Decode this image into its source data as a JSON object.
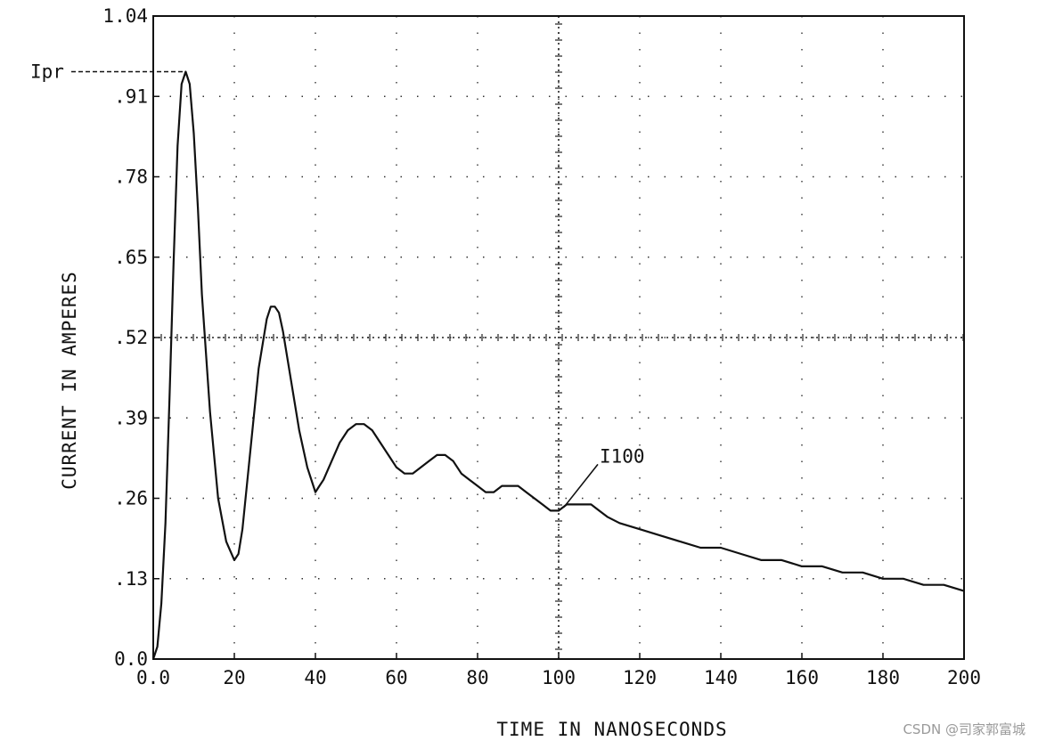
{
  "chart_data": {
    "type": "line",
    "xlabel": "TIME IN NANOSECONDS",
    "ylabel": "CURRENT IN AMPERES",
    "xlim": [
      0,
      200
    ],
    "ylim": [
      0,
      1.04
    ],
    "x_ticks": [
      "0.0",
      "20",
      "40",
      "60",
      "80",
      "100",
      "120",
      "140",
      "160",
      "180",
      "200"
    ],
    "x_tick_values": [
      0,
      20,
      40,
      60,
      80,
      100,
      120,
      140,
      160,
      180,
      200
    ],
    "y_ticks": [
      "0.0",
      ".13",
      ".26",
      ".39",
      ".52",
      ".65",
      ".78",
      ".91",
      "1.04"
    ],
    "y_tick_values": [
      0,
      0.13,
      0.26,
      0.39,
      0.52,
      0.65,
      0.78,
      0.91,
      1.04
    ],
    "grid": "dotted",
    "crosshair": {
      "x": 100,
      "y": 0.52
    },
    "series": [
      {
        "color": "#111111",
        "x": [
          0,
          1,
          2,
          3,
          4,
          5,
          6,
          7,
          8,
          9,
          10,
          11,
          12,
          14,
          16,
          18,
          20,
          21,
          22,
          24,
          26,
          28,
          29,
          30,
          31,
          32,
          34,
          36,
          38,
          40,
          41,
          42,
          44,
          46,
          48,
          50,
          52,
          54,
          56,
          58,
          60,
          62,
          64,
          66,
          68,
          70,
          72,
          74,
          76,
          78,
          80,
          82,
          84,
          86,
          88,
          90,
          92,
          94,
          96,
          98,
          100,
          102,
          104,
          106,
          108,
          110,
          112,
          115,
          120,
          125,
          130,
          135,
          140,
          145,
          150,
          155,
          160,
          165,
          170,
          175,
          180,
          185,
          190,
          195,
          200
        ],
        "y": [
          0.0,
          0.02,
          0.09,
          0.22,
          0.42,
          0.64,
          0.83,
          0.93,
          0.95,
          0.93,
          0.85,
          0.73,
          0.59,
          0.4,
          0.26,
          0.19,
          0.16,
          0.17,
          0.21,
          0.34,
          0.47,
          0.55,
          0.57,
          0.57,
          0.56,
          0.53,
          0.45,
          0.37,
          0.31,
          0.27,
          0.28,
          0.29,
          0.32,
          0.35,
          0.37,
          0.38,
          0.38,
          0.37,
          0.35,
          0.33,
          0.31,
          0.3,
          0.3,
          0.31,
          0.32,
          0.33,
          0.33,
          0.32,
          0.3,
          0.29,
          0.28,
          0.27,
          0.27,
          0.28,
          0.28,
          0.28,
          0.27,
          0.26,
          0.25,
          0.24,
          0.24,
          0.25,
          0.25,
          0.25,
          0.25,
          0.24,
          0.23,
          0.22,
          0.21,
          0.2,
          0.19,
          0.18,
          0.18,
          0.17,
          0.16,
          0.16,
          0.15,
          0.15,
          0.14,
          0.14,
          0.13,
          0.13,
          0.12,
          0.12,
          0.11
        ]
      }
    ],
    "annotations": [
      {
        "text": "Ipr",
        "x": 8,
        "y": 0.95,
        "style": "dashed-leader-to-y-axis"
      },
      {
        "text": "I100",
        "x": 100,
        "y": 0.24,
        "style": "leader-line"
      }
    ]
  },
  "watermark": "CSDN @司家郭富城"
}
